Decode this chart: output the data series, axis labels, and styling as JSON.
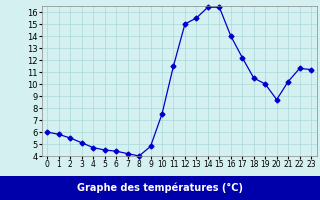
{
  "hours": [
    0,
    1,
    2,
    3,
    4,
    5,
    6,
    7,
    8,
    9,
    10,
    11,
    12,
    13,
    14,
    15,
    16,
    17,
    18,
    19,
    20,
    21,
    22,
    23
  ],
  "temperatures": [
    6.0,
    5.8,
    5.5,
    5.1,
    4.7,
    4.5,
    4.4,
    4.2,
    4.0,
    4.8,
    7.5,
    11.5,
    15.0,
    15.5,
    16.4,
    16.4,
    14.0,
    12.2,
    10.5,
    10.0,
    8.7,
    10.2,
    11.3,
    11.2
  ],
  "line_color": "#0000cc",
  "marker": "D",
  "marker_size": 2.5,
  "bg_color": "#d4f0f0",
  "xlabel_bg_color": "#0000aa",
  "grid_color": "#aad8d8",
  "xlabel": "Graphe des températures (°C)",
  "ylim": [
    4,
    16.5
  ],
  "yticks": [
    4,
    5,
    6,
    7,
    8,
    9,
    10,
    11,
    12,
    13,
    14,
    15,
    16
  ],
  "xlim": [
    0,
    23
  ],
  "xticks": [
    0,
    1,
    2,
    3,
    4,
    5,
    6,
    7,
    8,
    9,
    10,
    11,
    12,
    13,
    14,
    15,
    16,
    17,
    18,
    19,
    20,
    21,
    22,
    23
  ]
}
